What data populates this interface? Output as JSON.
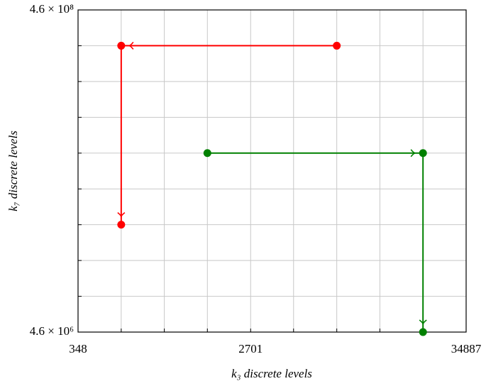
{
  "chart_data": {
    "type": "line",
    "x_label": "k₃ discrete levels",
    "y_label": "k₇ discrete levels",
    "x_log": true,
    "y_log": true,
    "grid": true,
    "xlim": [
      348,
      34887
    ],
    "xticks": [
      348,
      2701,
      34887
    ],
    "xminorticks": [
      581,
      969,
      1616,
      4496,
      7510,
      12530,
      20905
    ],
    "ylim": [
      4600000,
      460000000
    ],
    "yticks": [
      {
        "value": 4600000,
        "label": "4.6 × 10⁶"
      },
      {
        "value": 460000000,
        "label": "4.6 × 10⁸"
      }
    ],
    "yminorticks": [
      7670000,
      12800000,
      21350000,
      35600000,
      59400000,
      99100000,
      165300000,
      275800000
    ],
    "series": [
      {
        "color": "#ff0000",
        "x": [
          7510,
          581,
          581
        ],
        "values": [
          275800000,
          275800000,
          21350000
        ]
      },
      {
        "color": "#008000",
        "x": [
          1616,
          20905,
          20905
        ],
        "values": [
          59400000,
          59400000,
          4600000
        ]
      }
    ]
  }
}
